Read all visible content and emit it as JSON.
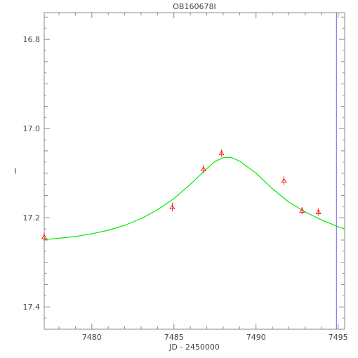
{
  "chart_data": {
    "type": "scatter",
    "title": "OB160678I",
    "xlabel": "JD - 2450000",
    "ylabel": "I",
    "xlim": [
      7477.1,
      7495.4
    ],
    "ylim": [
      17.45,
      16.74
    ],
    "y_inverted": true,
    "x_ticks": [
      7480,
      7485,
      7490,
      7495
    ],
    "y_ticks": [
      16.8,
      17.0,
      17.2,
      17.4
    ],
    "x_tick_labels": [
      "7480",
      "7485",
      "7490",
      "7495"
    ],
    "y_tick_labels": [
      "16.8",
      "17.0",
      "17.2",
      "17.4"
    ],
    "grid": false,
    "series": [
      {
        "kind": "points",
        "marker": "triangle",
        "color": "#ff0000",
        "points": [
          {
            "x": 7477.1,
            "y": 17.243,
            "err": 0.009
          },
          {
            "x": 7484.9,
            "y": 17.176,
            "err": 0.01
          },
          {
            "x": 7486.8,
            "y": 17.091,
            "err": 0.01
          },
          {
            "x": 7487.9,
            "y": 17.055,
            "err": 0.008
          },
          {
            "x": 7491.7,
            "y": 17.117,
            "err": 0.01
          },
          {
            "x": 7492.8,
            "y": 17.184,
            "err": 0.008
          },
          {
            "x": 7493.8,
            "y": 17.187,
            "err": 0.008
          }
        ]
      },
      {
        "kind": "line",
        "color": "#00ee00",
        "points": [
          {
            "x": 7477.1,
            "y": 17.249
          },
          {
            "x": 7478.0,
            "y": 17.246
          },
          {
            "x": 7479.0,
            "y": 17.242
          },
          {
            "x": 7480.0,
            "y": 17.236
          },
          {
            "x": 7481.0,
            "y": 17.228
          },
          {
            "x": 7482.0,
            "y": 17.217
          },
          {
            "x": 7483.0,
            "y": 17.202
          },
          {
            "x": 7484.0,
            "y": 17.182
          },
          {
            "x": 7485.0,
            "y": 17.157
          },
          {
            "x": 7486.0,
            "y": 17.125
          },
          {
            "x": 7487.0,
            "y": 17.09
          },
          {
            "x": 7487.5,
            "y": 17.074
          },
          {
            "x": 7488.0,
            "y": 17.065
          },
          {
            "x": 7488.5,
            "y": 17.065
          },
          {
            "x": 7489.0,
            "y": 17.073
          },
          {
            "x": 7490.0,
            "y": 17.1
          },
          {
            "x": 7491.0,
            "y": 17.135
          },
          {
            "x": 7492.0,
            "y": 17.165
          },
          {
            "x": 7493.0,
            "y": 17.187
          },
          {
            "x": 7494.0,
            "y": 17.205
          },
          {
            "x": 7495.0,
            "y": 17.22
          },
          {
            "x": 7495.4,
            "y": 17.225
          }
        ]
      }
    ],
    "vertical_markers": [
      {
        "x": 7494.9,
        "color": "#6a6ae8"
      }
    ]
  }
}
